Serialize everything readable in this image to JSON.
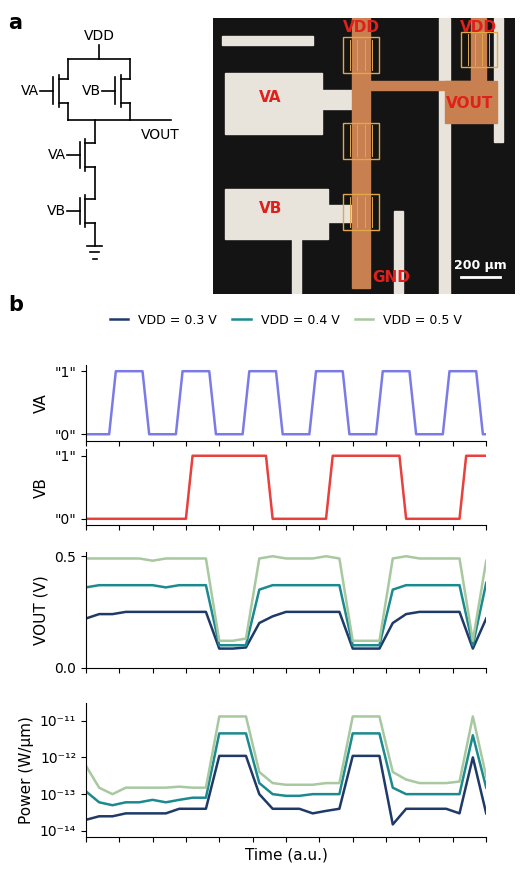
{
  "panel_labels": [
    "a",
    "b"
  ],
  "schematic": {
    "supply": "VDD",
    "output": "VOUT",
    "pull_up_gates": [
      "VA",
      "VB"
    ],
    "pull_down_gates": [
      "VA",
      "VB"
    ]
  },
  "micrograph": {
    "supply_labels": [
      "VDD",
      "VDD"
    ],
    "input_a": "VA",
    "input_b": "VB",
    "output": "VOUT",
    "ground": "GND",
    "scale_bar": "200 μm"
  },
  "chart_data": [
    {
      "type": "line",
      "y_label": "VA",
      "color": "#7b7be8",
      "x": [
        0,
        3.5,
        4.5,
        8.5,
        9.5,
        13.5,
        14.5,
        18.5,
        19.5,
        23.5,
        24.5,
        28.5,
        29.5,
        33.5,
        34.5,
        38.5,
        39.5,
        43.5,
        44.5,
        48.5,
        49.5,
        53.5,
        54.5,
        58.5,
        59.5,
        60
      ],
      "values": [
        0,
        0,
        1,
        1,
        0,
        0,
        1,
        1,
        0,
        0,
        1,
        1,
        0,
        0,
        1,
        1,
        0,
        0,
        1,
        1,
        0,
        0,
        1,
        1,
        0,
        0
      ],
      "xlim": [
        0,
        60
      ],
      "xticks": [
        0,
        5,
        10,
        15,
        20,
        25,
        30,
        35,
        40,
        45,
        50,
        55,
        60
      ],
      "ylim": [
        -0.1,
        1.1
      ],
      "yticks": [
        {
          "value": 0,
          "label": "\"0\""
        },
        {
          "value": 1,
          "label": "\"1\""
        }
      ],
      "tick_labels": "y"
    },
    {
      "type": "line",
      "y_label": "VB",
      "color": "#e8403c",
      "x": [
        0,
        15,
        16,
        27,
        28,
        36,
        37,
        47,
        48,
        56,
        57,
        60
      ],
      "values": [
        0,
        0,
        1,
        1,
        0,
        0,
        1,
        1,
        0,
        0,
        1,
        1
      ],
      "xlim": [
        0,
        60
      ],
      "xticks": [
        0,
        5,
        10,
        15,
        20,
        25,
        30,
        35,
        40,
        45,
        50,
        55,
        60
      ],
      "ylim": [
        -0.1,
        1.1
      ],
      "yticks": [
        {
          "value": 0,
          "label": "\"0\""
        },
        {
          "value": 1,
          "label": "\"1\""
        }
      ],
      "tick_labels": "y"
    },
    {
      "type": "line",
      "y_label": "VOUT (V)",
      "legend": "upper center",
      "x": [
        0,
        2,
        4,
        6,
        8,
        10,
        12,
        14,
        16,
        18,
        20,
        22,
        24,
        26,
        28,
        30,
        32,
        34,
        36,
        38,
        40,
        42,
        44,
        46,
        48,
        50,
        52,
        54,
        56,
        58,
        60
      ],
      "series": [
        {
          "name": "VDD = 0.3 V",
          "color": "#1f3a68",
          "values": [
            0.22,
            0.24,
            0.24,
            0.25,
            0.25,
            0.25,
            0.25,
            0.25,
            0.25,
            0.25,
            0.085,
            0.085,
            0.09,
            0.2,
            0.23,
            0.25,
            0.25,
            0.25,
            0.25,
            0.25,
            0.085,
            0.085,
            0.085,
            0.2,
            0.24,
            0.25,
            0.25,
            0.25,
            0.25,
            0.085,
            0.22
          ]
        },
        {
          "name": "VDD = 0.4 V",
          "color": "#1b8a8f",
          "values": [
            0.36,
            0.37,
            0.37,
            0.37,
            0.37,
            0.37,
            0.36,
            0.37,
            0.37,
            0.37,
            0.1,
            0.1,
            0.1,
            0.35,
            0.37,
            0.37,
            0.37,
            0.37,
            0.37,
            0.37,
            0.1,
            0.1,
            0.1,
            0.35,
            0.37,
            0.37,
            0.37,
            0.37,
            0.37,
            0.1,
            0.38
          ]
        },
        {
          "name": "VDD = 0.5 V",
          "color": "#a8c8a0",
          "values": [
            0.49,
            0.49,
            0.49,
            0.49,
            0.49,
            0.48,
            0.49,
            0.49,
            0.49,
            0.49,
            0.12,
            0.12,
            0.13,
            0.49,
            0.5,
            0.49,
            0.49,
            0.49,
            0.5,
            0.49,
            0.12,
            0.12,
            0.12,
            0.49,
            0.5,
            0.49,
            0.49,
            0.49,
            0.49,
            0.12,
            0.48
          ]
        }
      ],
      "xlim": [
        0,
        60
      ],
      "xticks": [
        0,
        5,
        10,
        15,
        20,
        25,
        30,
        35,
        40,
        45,
        50,
        55,
        60
      ],
      "ylim": [
        0,
        0.52
      ],
      "yticks": [
        0.0,
        0.5
      ],
      "tick_labels": "y"
    },
    {
      "type": "line",
      "y_label": "Power (W/μm)",
      "x_label": "Time (a.u.)",
      "log": "y",
      "x": [
        0,
        2,
        4,
        6,
        8,
        10,
        12,
        14,
        16,
        18,
        20,
        22,
        24,
        26,
        28,
        30,
        32,
        34,
        36,
        38,
        40,
        42,
        44,
        46,
        48,
        50,
        52,
        54,
        56,
        58,
        60
      ],
      "series": [
        {
          "name": "VDD = 0.3 V",
          "color": "#1f3a68",
          "values": [
            2e-14,
            2.5e-14,
            2.5e-14,
            3e-14,
            3e-14,
            3e-14,
            3e-14,
            4e-14,
            4e-14,
            4e-14,
            1.1e-12,
            1.1e-12,
            1.1e-12,
            1e-13,
            4e-14,
            4e-14,
            4e-14,
            3e-14,
            3.5e-14,
            4e-14,
            1.1e-12,
            1.1e-12,
            1.1e-12,
            1.5e-14,
            4e-14,
            4e-14,
            4e-14,
            4e-14,
            3e-14,
            1e-12,
            3e-14
          ]
        },
        {
          "name": "VDD = 0.4 V",
          "color": "#1b8a8f",
          "values": [
            1.2e-13,
            6e-14,
            5e-14,
            6e-14,
            6e-14,
            7e-14,
            6e-14,
            7e-14,
            8e-14,
            8e-14,
            4.5e-12,
            4.5e-12,
            4.5e-12,
            2e-13,
            1e-13,
            9e-14,
            9e-14,
            1e-13,
            1e-13,
            1e-13,
            4.5e-12,
            4.5e-12,
            4.5e-12,
            1.5e-13,
            1e-13,
            1e-13,
            1e-13,
            1e-13,
            1e-13,
            4e-12,
            1.5e-13
          ]
        },
        {
          "name": "VDD = 0.5 V",
          "color": "#a8c8a0",
          "values": [
            6e-13,
            1.5e-13,
            1e-13,
            1.5e-13,
            1.5e-13,
            1.5e-13,
            1.5e-13,
            1.6e-13,
            1.5e-13,
            1.5e-13,
            1.3e-11,
            1.3e-11,
            1.3e-11,
            4e-13,
            2e-13,
            1.8e-13,
            1.8e-13,
            1.8e-13,
            2e-13,
            2e-13,
            1.3e-11,
            1.3e-11,
            1.3e-11,
            4e-13,
            2.5e-13,
            2e-13,
            2e-13,
            2e-13,
            2.2e-13,
            1.3e-11,
            3e-13
          ]
        }
      ],
      "xlim": [
        0,
        60
      ],
      "xticks": [
        0,
        5,
        10,
        15,
        20,
        25,
        30,
        35,
        40,
        45,
        50,
        55,
        60
      ],
      "ylim": [
        7e-15,
        3e-11
      ],
      "yticks": [
        {
          "value": 1e-14,
          "label": "10⁻¹⁴"
        },
        {
          "value": 1e-13,
          "label": "10⁻¹³"
        },
        {
          "value": 1e-12,
          "label": "10⁻¹²"
        },
        {
          "value": 1e-11,
          "label": "10⁻¹¹"
        }
      ],
      "tick_labels": "y"
    }
  ]
}
